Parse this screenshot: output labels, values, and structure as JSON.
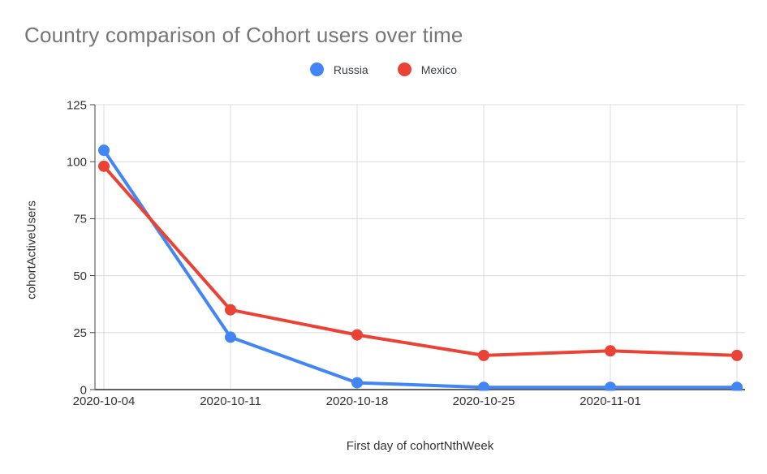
{
  "page": {
    "background": "#ffffff"
  },
  "chart_data": {
    "type": "line",
    "title": "Country comparison of Cohort users over time",
    "title_color": "#757575",
    "xlabel": "First day of cohortNthWeek",
    "ylabel": "cohortActiveUsers",
    "x_tick_labels": [
      "2020-10-04",
      "2020-10-11",
      "2020-10-18",
      "2020-10-25",
      "2020-11-01",
      ""
    ],
    "y_ticks": [
      0,
      25,
      50,
      75,
      100,
      125
    ],
    "ylim": [
      0,
      125
    ],
    "grid": true,
    "legend_position": "top-center",
    "axis_text_color": "#333333",
    "gridline_color": "#dadce0",
    "baseline_color": "#616161",
    "series": [
      {
        "name": "Russia",
        "color": "#4285F4",
        "values": [
          105,
          23,
          3,
          1,
          1,
          1
        ]
      },
      {
        "name": "Mexico",
        "color": "#EA4335",
        "values": [
          98,
          35,
          24,
          15,
          17,
          15
        ]
      }
    ]
  }
}
